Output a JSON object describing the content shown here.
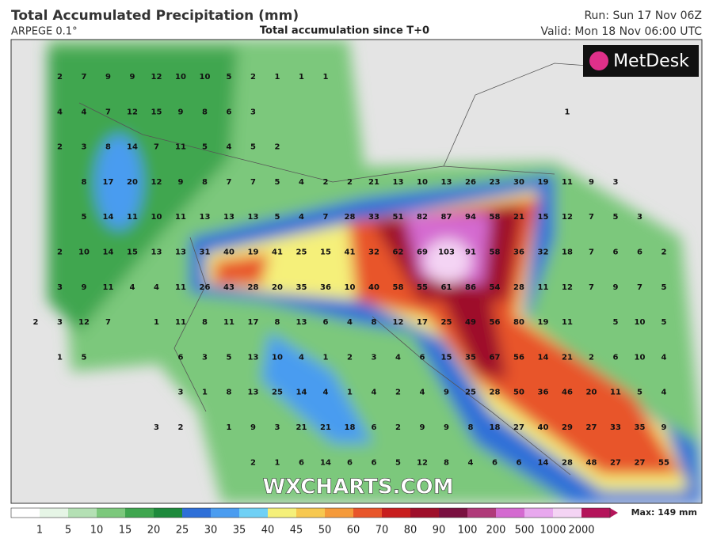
{
  "header": {
    "title": "Total Accumulated Precipitation (mm)",
    "model": "ARPEGE 0.1°",
    "subtitle": "Total accumulation since T+0",
    "run": "Run: Sun 17 Nov 06Z",
    "valid": "Valid: Mon 18 Nov 06:00 UTC"
  },
  "logo": "MetDesk",
  "watermark": "WXCHARTS.COM",
  "grid": {
    "rows": [
      [
        null,
        2,
        7,
        9,
        9,
        12,
        10,
        10,
        5,
        2,
        1,
        1,
        1,
        null,
        null,
        null,
        null,
        null,
        null,
        null,
        null,
        null,
        null,
        null,
        null,
        null,
        null
      ],
      [
        null,
        4,
        4,
        7,
        12,
        15,
        9,
        8,
        6,
        3,
        null,
        null,
        null,
        null,
        null,
        null,
        null,
        null,
        null,
        null,
        null,
        null,
        1,
        null,
        null,
        null,
        null
      ],
      [
        null,
        2,
        3,
        8,
        14,
        7,
        11,
        5,
        4,
        5,
        2,
        null,
        null,
        null,
        null,
        null,
        null,
        null,
        null,
        null,
        null,
        null,
        null,
        null,
        null,
        null,
        null
      ],
      [
        null,
        null,
        8,
        17,
        20,
        12,
        9,
        8,
        7,
        7,
        5,
        4,
        2,
        2,
        21,
        13,
        10,
        13,
        26,
        23,
        30,
        19,
        11,
        9,
        3,
        null,
        null
      ],
      [
        null,
        null,
        5,
        14,
        11,
        10,
        11,
        13,
        13,
        13,
        5,
        4,
        7,
        28,
        33,
        51,
        82,
        87,
        94,
        58,
        21,
        15,
        12,
        7,
        5,
        3,
        null
      ],
      [
        null,
        2,
        10,
        14,
        15,
        13,
        13,
        31,
        40,
        19,
        41,
        25,
        15,
        41,
        32,
        62,
        69,
        103,
        91,
        58,
        36,
        32,
        18,
        7,
        6,
        6,
        2
      ],
      [
        null,
        3,
        9,
        11,
        4,
        4,
        11,
        26,
        43,
        28,
        20,
        35,
        36,
        10,
        40,
        58,
        55,
        61,
        86,
        54,
        28,
        11,
        12,
        7,
        9,
        7,
        5
      ],
      [
        2,
        3,
        12,
        7,
        null,
        1,
        11,
        8,
        11,
        17,
        8,
        13,
        6,
        4,
        8,
        12,
        17,
        25,
        49,
        56,
        80,
        19,
        11,
        null,
        5,
        10,
        5
      ],
      [
        null,
        1,
        5,
        null,
        null,
        null,
        6,
        3,
        5,
        13,
        10,
        4,
        1,
        2,
        3,
        4,
        6,
        15,
        35,
        67,
        56,
        14,
        21,
        2,
        6,
        10,
        4
      ],
      [
        null,
        null,
        null,
        null,
        null,
        null,
        3,
        1,
        8,
        13,
        25,
        14,
        4,
        1,
        4,
        2,
        4,
        9,
        25,
        28,
        50,
        36,
        46,
        20,
        11,
        5,
        4
      ],
      [
        null,
        null,
        null,
        null,
        null,
        3,
        2,
        null,
        1,
        9,
        3,
        21,
        21,
        18,
        6,
        2,
        9,
        9,
        8,
        18,
        27,
        40,
        29,
        27,
        33,
        35,
        9
      ],
      [
        null,
        null,
        null,
        null,
        null,
        null,
        null,
        null,
        null,
        2,
        1,
        6,
        14,
        6,
        6,
        5,
        12,
        8,
        4,
        6,
        6,
        14,
        28,
        48,
        27,
        27,
        55
      ]
    ]
  },
  "legend": {
    "ticks": [
      1,
      5,
      10,
      15,
      20,
      25,
      30,
      35,
      40,
      45,
      50,
      60,
      70,
      80,
      90,
      100,
      200,
      500,
      1000,
      2000
    ],
    "colors": [
      "#ffffff",
      "#e6f5e6",
      "#b4e0b4",
      "#7cc87c",
      "#3fa64f",
      "#1e8a3c",
      "#2e6fd8",
      "#4a9cf0",
      "#6fd0f5",
      "#f5f07a",
      "#f7c850",
      "#f59a3a",
      "#e8552a",
      "#c81e1e",
      "#9e0f2a",
      "#7a1040",
      "#b03a7a",
      "#d46ad0",
      "#e8a8ee",
      "#f4d4f4",
      "#b4145a"
    ],
    "max": "Max: 149 mm"
  }
}
